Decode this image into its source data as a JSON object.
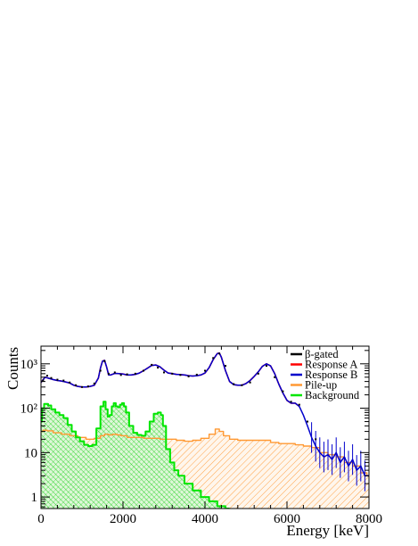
{
  "chart_data": {
    "type": "line",
    "xlabel": "Energy [keV]",
    "ylabel": "Counts",
    "xlim": [
      0,
      8000
    ],
    "ylim": [
      0.55,
      2500
    ],
    "y_scale": "log",
    "x_ticks": [
      0,
      2000,
      4000,
      6000,
      8000
    ],
    "x_tick_labels": [
      "0",
      "2000",
      "4000",
      "6000",
      "8000"
    ],
    "y_ticks": [
      1,
      10,
      100,
      1000
    ],
    "y_tick_labels": [
      "1",
      "10",
      "10²",
      "10³"
    ],
    "grid": false,
    "legend_position": "top-right",
    "legend": [
      {
        "label": "β-gated",
        "color": "#000000"
      },
      {
        "label": "Response A",
        "color": "#ff0000"
      },
      {
        "label": "Response B",
        "color": "#0000cc"
      },
      {
        "label": "Pile-up",
        "color": "#ff9933"
      },
      {
        "label": "Background",
        "color": "#00e600"
      }
    ],
    "series": [
      {
        "name": "β-gated",
        "style": "points",
        "color": "#000000",
        "x": [
          50,
          150,
          250,
          400,
          550,
          700,
          850,
          1000,
          1150,
          1300,
          1450,
          1550,
          1650,
          1800,
          1950,
          2100,
          2300,
          2500,
          2700,
          2850,
          3000,
          3200,
          3400,
          3600,
          3800,
          4000,
          4200,
          4350,
          4500,
          4700,
          4900,
          5100,
          5300,
          5500,
          5700,
          5900,
          6100,
          6300,
          6500,
          6700
        ],
        "y": [
          420,
          540,
          480,
          440,
          420,
          380,
          330,
          300,
          310,
          360,
          700,
          1150,
          600,
          640,
          560,
          580,
          600,
          700,
          950,
          820,
          640,
          600,
          560,
          520,
          570,
          700,
          1350,
          1700,
          900,
          350,
          330,
          380,
          600,
          900,
          500,
          240,
          140,
          120,
          50,
          20
        ]
      },
      {
        "name": "Response A",
        "color": "#ff0000",
        "x": [
          0,
          100,
          200,
          300,
          400,
          500,
          600,
          700,
          800,
          900,
          1000,
          1100,
          1200,
          1300,
          1400,
          1450,
          1500,
          1550,
          1600,
          1650,
          1700,
          1800,
          1900,
          2000,
          2100,
          2200,
          2300,
          2400,
          2500,
          2600,
          2700,
          2800,
          2900,
          3000,
          3100,
          3200,
          3300,
          3400,
          3500,
          3600,
          3700,
          3800,
          3900,
          4000,
          4100,
          4200,
          4300,
          4350,
          4400,
          4500,
          4600,
          4700,
          4800,
          4900,
          5000,
          5100,
          5200,
          5300,
          5400,
          5500,
          5600,
          5700,
          5800,
          5900,
          6000,
          6100,
          6200,
          6300
        ],
        "y": [
          380,
          500,
          470,
          440,
          420,
          410,
          390,
          370,
          330,
          310,
          300,
          300,
          310,
          330,
          480,
          800,
          1150,
          1200,
          850,
          560,
          560,
          610,
          600,
          590,
          560,
          560,
          580,
          620,
          700,
          800,
          920,
          940,
          860,
          720,
          620,
          600,
          580,
          570,
          560,
          540,
          530,
          540,
          560,
          620,
          820,
          1250,
          1700,
          1750,
          1400,
          700,
          400,
          340,
          330,
          330,
          360,
          420,
          520,
          660,
          880,
          1000,
          900,
          600,
          350,
          220,
          150,
          130,
          130,
          110
        ]
      },
      {
        "name": "Response B",
        "color": "#0000cc",
        "x": [
          0,
          100,
          200,
          300,
          400,
          500,
          600,
          700,
          800,
          900,
          1000,
          1100,
          1200,
          1300,
          1400,
          1450,
          1500,
          1550,
          1600,
          1650,
          1700,
          1800,
          1900,
          2000,
          2100,
          2200,
          2300,
          2400,
          2500,
          2600,
          2700,
          2800,
          2900,
          3000,
          3100,
          3200,
          3300,
          3400,
          3500,
          3600,
          3700,
          3800,
          3900,
          4000,
          4100,
          4200,
          4300,
          4350,
          4400,
          4500,
          4600,
          4700,
          4800,
          4900,
          5000,
          5100,
          5200,
          5300,
          5400,
          5500,
          5600,
          5700,
          5800,
          5900,
          6000,
          6100,
          6200,
          6300,
          6400,
          6500,
          6600,
          6700,
          6800,
          6900,
          7000,
          7100,
          7200,
          7300,
          7400,
          7500,
          7600,
          7700,
          7800,
          7900,
          8000
        ],
        "y": [
          380,
          500,
          470,
          440,
          420,
          410,
          390,
          370,
          330,
          310,
          300,
          300,
          310,
          330,
          480,
          800,
          1150,
          1200,
          850,
          560,
          560,
          610,
          600,
          590,
          560,
          560,
          580,
          620,
          700,
          800,
          920,
          940,
          860,
          720,
          620,
          600,
          580,
          570,
          560,
          540,
          530,
          540,
          560,
          620,
          820,
          1250,
          1700,
          1750,
          1400,
          700,
          400,
          340,
          330,
          330,
          360,
          420,
          520,
          660,
          880,
          1000,
          900,
          600,
          350,
          220,
          150,
          130,
          130,
          110,
          70,
          40,
          22,
          14,
          10,
          8,
          9,
          7,
          10,
          6,
          8,
          5,
          7,
          4,
          5,
          3,
          3
        ]
      },
      {
        "name": "Pile-up",
        "color": "#ff9933",
        "fill": "hatch",
        "x": [
          0,
          100,
          200,
          400,
          600,
          800,
          1000,
          1200,
          1400,
          1500,
          1600,
          1700,
          1800,
          1900,
          2000,
          2200,
          2400,
          2600,
          2800,
          3000,
          3200,
          3400,
          3600,
          3800,
          4000,
          4200,
          4300,
          4400,
          4500,
          4700,
          4900,
          5100,
          5300,
          5500,
          5700,
          5900,
          6100,
          6300,
          6500,
          6700,
          6900,
          7100,
          7300,
          7500,
          7700,
          7900,
          8000
        ],
        "y": [
          30,
          32,
          31,
          28,
          26,
          24,
          22,
          20,
          21,
          24,
          26,
          25,
          26,
          25,
          24,
          22,
          22,
          21,
          21,
          20,
          20,
          19,
          18,
          19,
          21,
          26,
          34,
          30,
          24,
          20,
          19,
          19,
          19,
          19,
          17,
          16,
          16,
          15,
          14,
          13,
          10,
          9,
          8,
          6,
          5,
          3.5,
          3
        ]
      },
      {
        "name": "Background",
        "color": "#00e600",
        "fill": "hatch",
        "x": [
          0,
          50,
          100,
          150,
          200,
          300,
          400,
          500,
          600,
          700,
          800,
          900,
          1000,
          1100,
          1200,
          1300,
          1400,
          1500,
          1550,
          1600,
          1650,
          1700,
          1750,
          1800,
          1850,
          1900,
          1950,
          2000,
          2050,
          2100,
          2200,
          2300,
          2400,
          2500,
          2600,
          2700,
          2800,
          2900,
          2950,
          3000,
          3100,
          3200,
          3300,
          3400,
          3600,
          3800,
          4000,
          4200,
          4400,
          4600
        ],
        "y": [
          50,
          100,
          125,
          125,
          115,
          95,
          80,
          70,
          60,
          42,
          30,
          22,
          18,
          15,
          14,
          15,
          35,
          110,
          140,
          95,
          65,
          70,
          110,
          130,
          110,
          105,
          120,
          130,
          110,
          80,
          40,
          28,
          25,
          24,
          30,
          50,
          75,
          80,
          70,
          40,
          12,
          6,
          4,
          3,
          2,
          1.4,
          1,
          0.8,
          0.62,
          0.55
        ]
      }
    ]
  }
}
